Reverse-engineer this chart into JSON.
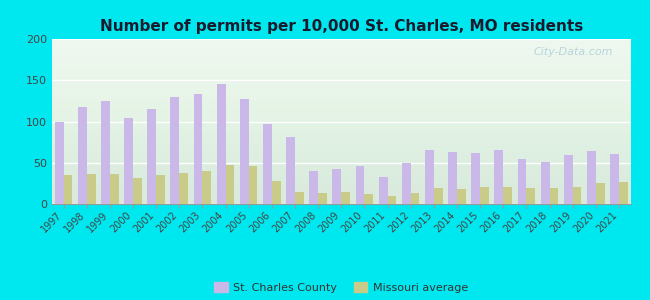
{
  "title": "Number of permits per 10,000 St. Charles, MO residents",
  "years": [
    1997,
    1998,
    1999,
    2000,
    2001,
    2002,
    2003,
    2004,
    2005,
    2006,
    2007,
    2008,
    2009,
    2010,
    2011,
    2012,
    2013,
    2014,
    2015,
    2016,
    2017,
    2018,
    2019,
    2020,
    2021
  ],
  "st_charles": [
    99,
    118,
    125,
    104,
    115,
    130,
    133,
    146,
    127,
    97,
    81,
    40,
    42,
    46,
    33,
    50,
    65,
    63,
    62,
    65,
    55,
    51,
    60,
    64,
    61
  ],
  "missouri": [
    35,
    36,
    36,
    32,
    35,
    37,
    40,
    47,
    46,
    28,
    15,
    13,
    14,
    12,
    10,
    13,
    20,
    18,
    21,
    21,
    20,
    20,
    21,
    25,
    27
  ],
  "st_charles_color": "#c9b8e8",
  "missouri_color": "#c8cc88",
  "plot_bg": "#edf7ee",
  "outer_bg": "#00e8ef",
  "ylim": [
    0,
    200
  ],
  "yticks": [
    0,
    50,
    100,
    150,
    200
  ],
  "title_fontsize": 11,
  "legend_label_stcharles": "St. Charles County",
  "legend_label_missouri": "Missouri average",
  "watermark": "City-Data.com"
}
